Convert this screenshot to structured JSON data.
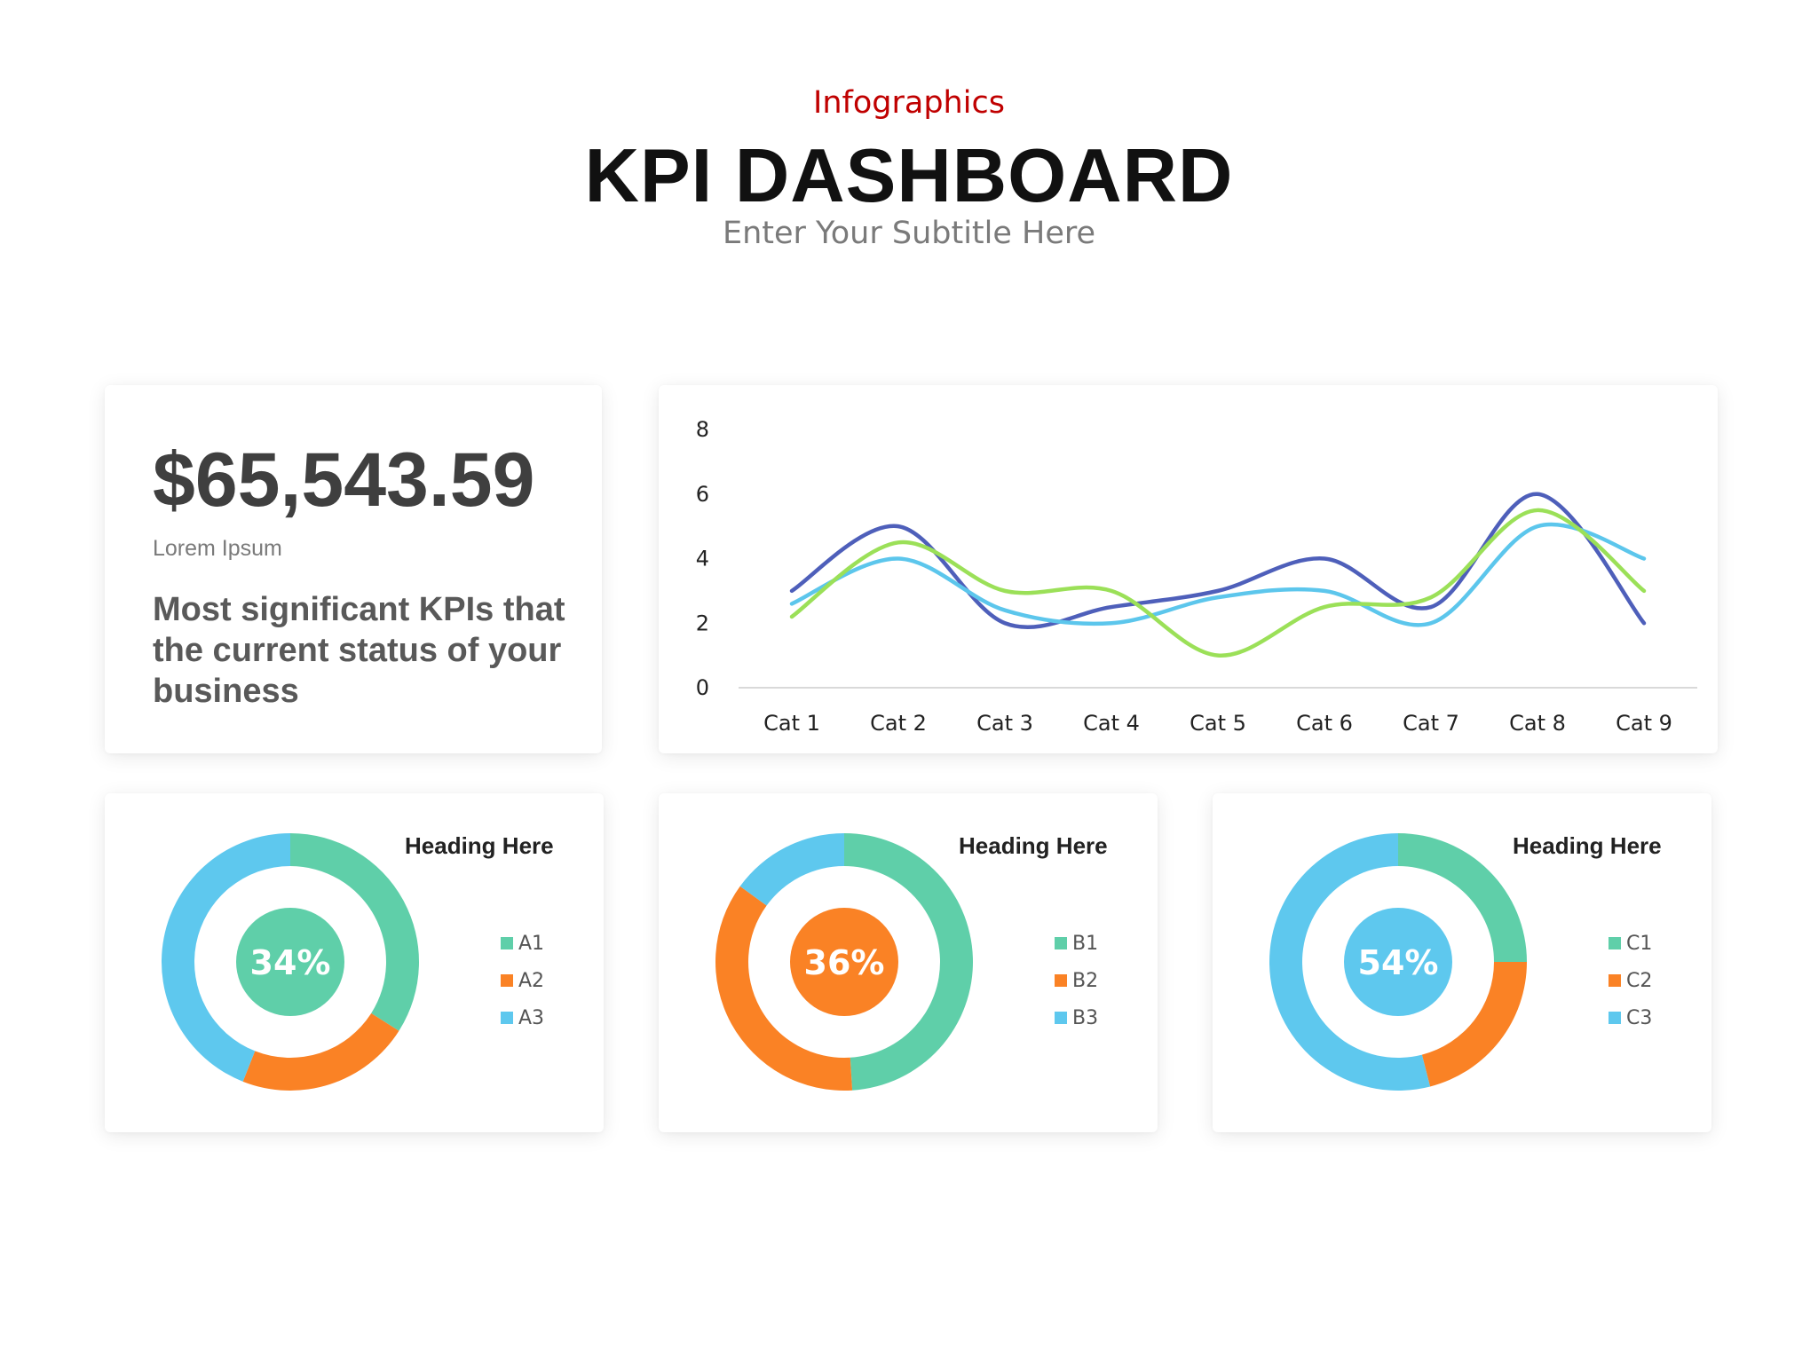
{
  "header": {
    "kicker": "Infographics",
    "title": "KPI DASHBOARD",
    "subtitle": "Enter Your Subtitle Here"
  },
  "kpi": {
    "value": "$65,543.59",
    "label": "Lorem Ipsum",
    "description": "Most significant KPIs that the current status of your business"
  },
  "colors": {
    "teal": "#5fcfa9",
    "orange": "#fa8225",
    "sky": "#5ec8ee",
    "navy": "#4e5fba",
    "lime": "#9be058",
    "light_blue": "#5cc6ec"
  },
  "chart_data": [
    {
      "type": "line",
      "smooth": true,
      "categories": [
        "Cat 1",
        "Cat 2",
        "Cat 3",
        "Cat 4",
        "Cat 5",
        "Cat 6",
        "Cat 7",
        "Cat 8",
        "Cat 9"
      ],
      "ylim": [
        0,
        8
      ],
      "yticks": [
        0,
        2,
        4,
        6,
        8
      ],
      "grid": false,
      "legend": "none",
      "series": [
        {
          "values": [
            3,
            5,
            2,
            2.5,
            3,
            4,
            2.5,
            6,
            2
          ],
          "color": "#4e5fba"
        },
        {
          "values": [
            2.6,
            4,
            2.4,
            2,
            2.8,
            3,
            2,
            5,
            4
          ],
          "color": "#5cc6ec"
        },
        {
          "values": [
            2.2,
            4.5,
            3,
            3,
            1,
            2.5,
            2.8,
            5.5,
            3
          ],
          "color": "#9be058"
        }
      ]
    },
    {
      "type": "pie",
      "donut": true,
      "heading": "Heading Here",
      "center_label": "34%",
      "center_color": "#5fcfa9",
      "slices": [
        {
          "label": "A1",
          "value": 34,
          "color": "#5fcfa9"
        },
        {
          "label": "A2",
          "value": 22,
          "color": "#fa8225"
        },
        {
          "label": "A3",
          "value": 44,
          "color": "#5ec8ee"
        }
      ]
    },
    {
      "type": "pie",
      "donut": true,
      "heading": "Heading Here",
      "center_label": "36%",
      "center_color": "#fa8225",
      "slices": [
        {
          "label": "B1",
          "value": 49,
          "color": "#5fcfa9"
        },
        {
          "label": "B2",
          "value": 36,
          "color": "#fa8225"
        },
        {
          "label": "B3",
          "value": 15,
          "color": "#5ec8ee"
        }
      ]
    },
    {
      "type": "pie",
      "donut": true,
      "heading": "Heading Here",
      "center_label": "54%",
      "center_color": "#5ec8ee",
      "slices": [
        {
          "label": "C1",
          "value": 25,
          "color": "#5fcfa9"
        },
        {
          "label": "C2",
          "value": 21,
          "color": "#fa8225"
        },
        {
          "label": "C3",
          "value": 54,
          "color": "#5ec8ee"
        }
      ]
    }
  ]
}
